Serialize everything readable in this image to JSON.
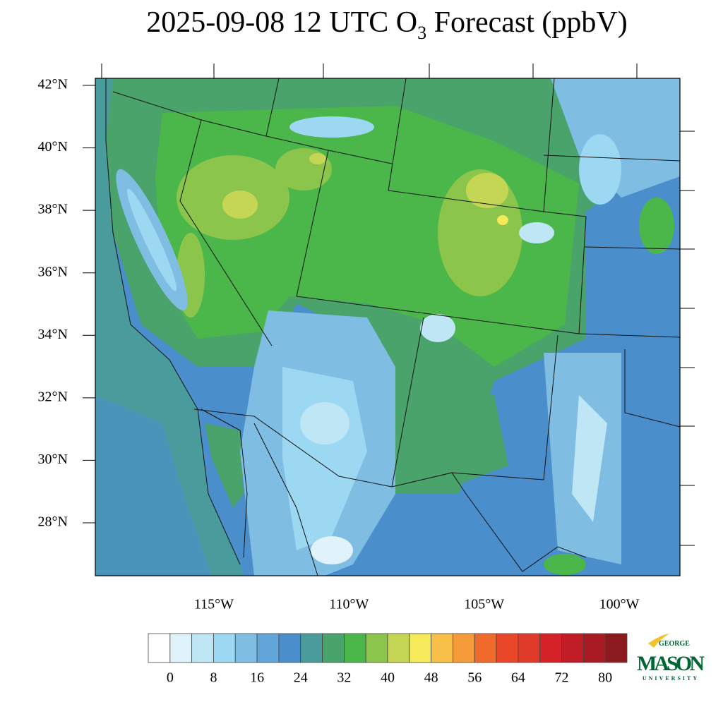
{
  "map": {
    "title": {
      "text": "2025-09-08 12 UTC O",
      "subscript": "3",
      "suffix": " Forecast (ppbV)"
    },
    "lat_ticks": [
      {
        "value": 42,
        "label": "42°N"
      },
      {
        "value": 40,
        "label": "40°N"
      },
      {
        "value": 38,
        "label": "38°N"
      },
      {
        "value": 36,
        "label": "36°N"
      },
      {
        "value": 34,
        "label": "34°N"
      },
      {
        "value": 32,
        "label": "32°N"
      },
      {
        "value": 30,
        "label": "30°N"
      },
      {
        "value": 28,
        "label": "28°N"
      }
    ],
    "lon_ticks": [
      {
        "value": -115,
        "label": "115°W"
      },
      {
        "value": -110,
        "label": "110°W"
      },
      {
        "value": -105,
        "label": "105°W"
      },
      {
        "value": -100,
        "label": "100°W"
      }
    ],
    "colorbar": {
      "lim": [
        -4,
        84
      ],
      "ticks": [
        0,
        8,
        16,
        24,
        32,
        40,
        48,
        56,
        64,
        72,
        80
      ],
      "colors": [
        "#ffffff",
        "#e0f3fb",
        "#bfe6f5",
        "#9dd8f2",
        "#7fbde3",
        "#62a6dc",
        "#4a8fcb",
        "#4a9c9c",
        "#4aa36b",
        "#4bb74a",
        "#8bc54c",
        "#c5d655",
        "#f6e95a",
        "#f8c049",
        "#f59b3a",
        "#f06a2c",
        "#e9462a",
        "#e03a2a",
        "#d42228",
        "#c01d26",
        "#a81b23",
        "#8b1a1e"
      ]
    },
    "logo": {
      "top": "GEORGE",
      "main": "MASON",
      "bottom": "UNIVERSITY"
    }
  }
}
